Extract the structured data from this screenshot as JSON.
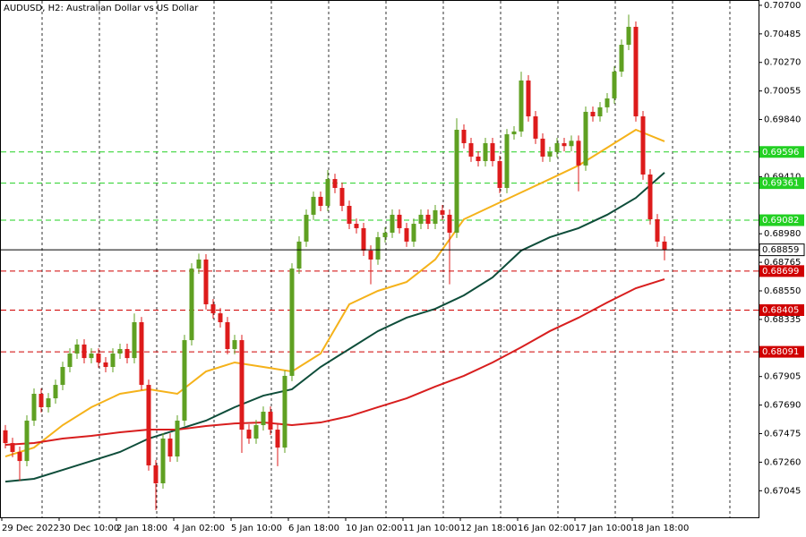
{
  "chart_data": {
    "type": "candlestick",
    "title": "AUDUSD, H2:  Australian Dollar vs US Dollar",
    "categories": [
      "29 Dec 2022",
      null,
      null,
      null,
      null,
      null,
      null,
      null,
      "30 Dec 10:00",
      null,
      null,
      null,
      null,
      null,
      null,
      null,
      "2 Jan 18:00",
      null,
      null,
      null,
      null,
      null,
      null,
      null,
      "4 Jan 02:00",
      null,
      null,
      null,
      null,
      null,
      null,
      null,
      "5 Jan 10:00",
      null,
      null,
      null,
      null,
      null,
      null,
      null,
      "6 Jan 18:00",
      null,
      null,
      null,
      null,
      null,
      null,
      null,
      "10 Jan 02:00",
      null,
      null,
      null,
      null,
      null,
      null,
      null,
      "11 Jan 10:00",
      null,
      null,
      null,
      null,
      null,
      null,
      null,
      "12 Jan 18:00",
      null,
      null,
      null,
      null,
      null,
      null,
      null,
      "16 Jan 02:00",
      null,
      null,
      null,
      null,
      null,
      null,
      null,
      "17 Jan 10:00",
      null,
      null,
      null,
      null,
      null,
      null,
      null,
      "18 Jan 18:00",
      null,
      null,
      null,
      null
    ],
    "open": [
      0.675,
      0.67404,
      0.67337,
      0.67269,
      0.67573,
      0.67775,
      0.67674,
      0.67741,
      0.67842,
      0.67977,
      0.68078,
      0.68146,
      0.68044,
      0.68078,
      0.68011,
      0.67977,
      0.68078,
      0.68112,
      0.68044,
      0.68314,
      0.67842,
      0.67236,
      0.67101,
      0.67438,
      0.67303,
      0.67573,
      0.68179,
      0.68718,
      0.68786,
      0.68449,
      0.68381,
      0.68314,
      0.68112,
      0.68179,
      0.67505,
      0.67438,
      0.67539,
      0.6764,
      0.67505,
      0.6737,
      0.6791,
      0.68718,
      0.68921,
      0.69123,
      0.69258,
      0.6919,
      0.69392,
      0.69325,
      0.6919,
      0.69055,
      0.69022,
      0.68853,
      0.68786,
      0.68954,
      0.68988,
      0.69123,
      0.69022,
      0.68921,
      0.69055,
      0.69123,
      0.69055,
      0.69157,
      0.69123,
      0.68988,
      0.69763,
      0.69662,
      0.69561,
      0.69527,
      0.69662,
      0.69527,
      0.69325,
      0.69729,
      0.6975,
      0.70134,
      0.69864,
      0.69696,
      0.69561,
      0.69595,
      0.69662,
      0.6964,
      0.6968,
      0.69494,
      0.69898,
      0.69864,
      0.69932,
      0.69999,
      0.70201,
      0.70403,
      0.70538,
      0.69864,
      0.69426,
      0.69089,
      0.68921
    ],
    "high": [
      0.6754,
      0.67444,
      0.67377,
      0.67613,
      0.67815,
      0.67815,
      0.67781,
      0.67882,
      0.68017,
      0.68118,
      0.68186,
      0.68186,
      0.68118,
      0.68118,
      0.68051,
      0.68118,
      0.68152,
      0.68152,
      0.6838,
      0.68354,
      0.67882,
      0.67276,
      0.67478,
      0.67478,
      0.67613,
      0.68219,
      0.68758,
      0.6883,
      0.68826,
      0.68489,
      0.68421,
      0.68354,
      0.68219,
      0.68219,
      0.67545,
      0.67579,
      0.6768,
      0.6768,
      0.67545,
      0.6795,
      0.68758,
      0.68961,
      0.69163,
      0.69298,
      0.69298,
      0.6946,
      0.69432,
      0.69365,
      0.6923,
      0.69095,
      0.69062,
      0.68893,
      0.68994,
      0.69028,
      0.69163,
      0.69163,
      0.69062,
      0.69095,
      0.69163,
      0.69163,
      0.69197,
      0.69197,
      0.69163,
      0.6985,
      0.69803,
      0.69702,
      0.69601,
      0.69702,
      0.69702,
      0.69567,
      0.69769,
      0.6979,
      0.702,
      0.70174,
      0.69904,
      0.69736,
      0.69635,
      0.69702,
      0.69702,
      0.6972,
      0.6972,
      0.69938,
      0.69938,
      0.69972,
      0.70039,
      0.70241,
      0.70443,
      0.7063,
      0.70578,
      0.69904,
      0.69466,
      0.69129,
      0.68961
    ],
    "low": [
      0.67364,
      0.67297,
      0.6712,
      0.67229,
      0.67533,
      0.67634,
      0.67634,
      0.67701,
      0.67802,
      0.67937,
      0.68038,
      0.68004,
      0.68004,
      0.67971,
      0.67937,
      0.67937,
      0.68038,
      0.68004,
      0.68004,
      0.67802,
      0.67196,
      0.669,
      0.67061,
      0.67263,
      0.67263,
      0.67533,
      0.68139,
      0.68678,
      0.68409,
      0.68341,
      0.68274,
      0.68072,
      0.68072,
      0.6733,
      0.67398,
      0.67398,
      0.67499,
      0.67465,
      0.6723,
      0.6733,
      0.6787,
      0.68678,
      0.68881,
      0.69083,
      0.6915,
      0.6915,
      0.69285,
      0.6915,
      0.69015,
      0.68982,
      0.68813,
      0.686,
      0.68746,
      0.68914,
      0.68948,
      0.68982,
      0.68881,
      0.68881,
      0.69015,
      0.69015,
      0.69015,
      0.69083,
      0.686,
      0.68948,
      0.69622,
      0.69521,
      0.69487,
      0.69487,
      0.69487,
      0.69285,
      0.69285,
      0.69689,
      0.6971,
      0.69824,
      0.69656,
      0.69521,
      0.69521,
      0.69555,
      0.696,
      0.696,
      0.693,
      0.69454,
      0.69824,
      0.69824,
      0.69892,
      0.69959,
      0.70161,
      0.70363,
      0.69824,
      0.69386,
      0.69049,
      0.68881,
      0.6878
    ],
    "close": [
      0.67404,
      0.67337,
      0.67269,
      0.67573,
      0.67775,
      0.67674,
      0.67741,
      0.67842,
      0.67977,
      0.68078,
      0.68146,
      0.68044,
      0.68078,
      0.68011,
      0.67977,
      0.68078,
      0.68112,
      0.68044,
      0.68314,
      0.67842,
      0.67236,
      0.67101,
      0.67438,
      0.67303,
      0.67573,
      0.68179,
      0.68718,
      0.68786,
      0.68449,
      0.68381,
      0.68314,
      0.68112,
      0.68179,
      0.67505,
      0.67438,
      0.67539,
      0.6764,
      0.67505,
      0.6737,
      0.6791,
      0.68718,
      0.68921,
      0.69123,
      0.69258,
      0.6919,
      0.69392,
      0.69325,
      0.6919,
      0.69055,
      0.69022,
      0.68853,
      0.68786,
      0.68954,
      0.68988,
      0.69123,
      0.69022,
      0.68921,
      0.69055,
      0.69123,
      0.69055,
      0.69157,
      0.69123,
      0.68988,
      0.69763,
      0.69662,
      0.69561,
      0.69527,
      0.69662,
      0.69527,
      0.69325,
      0.69729,
      0.6975,
      0.70134,
      0.69864,
      0.69696,
      0.69561,
      0.69595,
      0.69662,
      0.6964,
      0.6968,
      0.69494,
      0.69898,
      0.69864,
      0.69932,
      0.69999,
      0.70201,
      0.70403,
      0.70538,
      0.69864,
      0.69426,
      0.69089,
      0.68921,
      0.68859
    ],
    "up_color": "#5fa022",
    "down_color": "#dd1b1b",
    "lines": [
      {
        "color": "#f5b21a",
        "x": [
          0,
          4,
          8,
          12,
          16,
          20,
          24,
          28,
          32,
          36,
          40,
          44,
          48,
          52,
          56,
          60,
          64,
          68,
          72,
          76,
          80,
          84,
          88,
          92
        ],
        "values": [
          0.67303,
          0.6737,
          0.67539,
          0.67674,
          0.67775,
          0.67809,
          0.67775,
          0.67943,
          0.68011,
          0.67977,
          0.67943,
          0.68078,
          0.68449,
          0.6855,
          0.68617,
          0.68786,
          0.69089,
          0.6919,
          0.69291,
          0.69392,
          0.69494,
          0.69628,
          0.69763,
          0.69676
        ]
      },
      {
        "color": "#0e4d3a",
        "x": [
          0,
          4,
          8,
          12,
          16,
          20,
          24,
          28,
          32,
          36,
          40,
          44,
          48,
          52,
          56,
          60,
          64,
          68,
          72,
          76,
          80,
          84,
          88,
          92
        ],
        "values": [
          0.67114,
          0.67135,
          0.67202,
          0.67269,
          0.67337,
          0.67438,
          0.67505,
          0.67573,
          0.67674,
          0.67761,
          0.67809,
          0.67977,
          0.68112,
          0.68247,
          0.68348,
          0.68415,
          0.68516,
          0.68651,
          0.68853,
          0.68954,
          0.69022,
          0.69123,
          0.6925,
          0.6944
        ]
      },
      {
        "color": "#d81e1e",
        "x": [
          0,
          4,
          8,
          12,
          16,
          20,
          24,
          28,
          32,
          36,
          40,
          44,
          48,
          52,
          56,
          60,
          64,
          68,
          72,
          76,
          80,
          84,
          88,
          92
        ],
        "values": [
          0.67391,
          0.67404,
          0.67438,
          0.67458,
          0.67485,
          0.67505,
          0.67505,
          0.67532,
          0.67552,
          0.67559,
          0.67539,
          0.67559,
          0.67606,
          0.67674,
          0.67741,
          0.67829,
          0.6791,
          0.68011,
          0.68125,
          0.68247,
          0.68348,
          0.68462,
          0.6857,
          0.68638
        ]
      }
    ],
    "levels": [
      {
        "value": 0.69596,
        "color": "#22d022"
      },
      {
        "value": 0.69361,
        "color": "#22d022"
      },
      {
        "value": 0.69082,
        "color": "#22d022"
      },
      {
        "value": 0.68699,
        "color": "#d00000"
      },
      {
        "value": 0.68405,
        "color": "#d00000"
      },
      {
        "value": 0.68091,
        "color": "#d00000"
      }
    ],
    "last_price": 0.68859,
    "ylim": [
      0.66845,
      0.7074
    ],
    "yticks": [
      {
        "value": 0.707,
        "label": "0.70700"
      },
      {
        "value": 0.70485,
        "label": "0.70485"
      },
      {
        "value": 0.7027,
        "label": "0.70270"
      },
      {
        "value": 0.70055,
        "label": "0.70055"
      },
      {
        "value": 0.6984,
        "label": "0.69840"
      },
      {
        "value": 0.6941,
        "label": "0.69410"
      },
      {
        "value": 0.6898,
        "label": "0.68980"
      },
      {
        "value": 0.68765,
        "label": "0.68765"
      },
      {
        "value": 0.6855,
        "label": "0.68550"
      },
      {
        "value": 0.68335,
        "label": "0.68335"
      },
      {
        "value": 0.67905,
        "label": "0.67905"
      },
      {
        "value": 0.6769,
        "label": "0.67690"
      },
      {
        "value": 0.67475,
        "label": "0.67475"
      },
      {
        "value": 0.6726,
        "label": "0.67260"
      },
      {
        "value": 0.67045,
        "label": "0.67045"
      }
    ]
  }
}
